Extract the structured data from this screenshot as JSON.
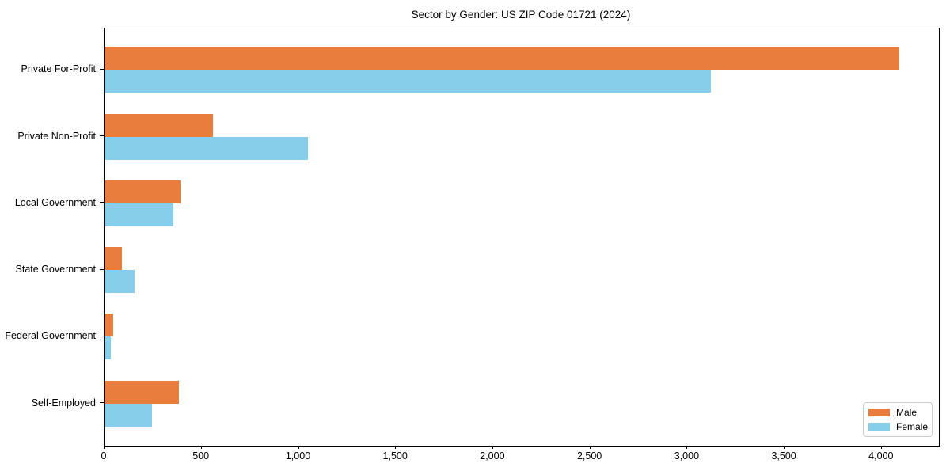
{
  "chart_data": {
    "type": "bar",
    "orientation": "horizontal",
    "title": "Sector by Gender: US ZIP Code 01721 (2024)",
    "categories": [
      "Private For-Profit",
      "Private Non-Profit",
      "Local Government",
      "State Government",
      "Federal Government",
      "Self-Employed"
    ],
    "series": [
      {
        "name": "Male",
        "color": "#E87D3E",
        "values": [
          4090,
          559,
          391,
          91,
          46,
          384
        ]
      },
      {
        "name": "Female",
        "color": "#87CEEB",
        "values": [
          3120,
          1046,
          354,
          155,
          31,
          246
        ]
      }
    ],
    "xlabel": "",
    "ylabel": "",
    "xlim": [
      0,
      4294
    ],
    "xticks": [
      0,
      500,
      1000,
      1500,
      2000,
      2500,
      3000,
      3500,
      4000
    ],
    "xtick_labels": [
      "0",
      "500",
      "1,000",
      "1,500",
      "2,000",
      "2,500",
      "3,000",
      "3,500",
      "4,000"
    ],
    "legend_position": "lower right",
    "grid": false,
    "background_color": "#ffffff",
    "spine_color": "#000000"
  }
}
